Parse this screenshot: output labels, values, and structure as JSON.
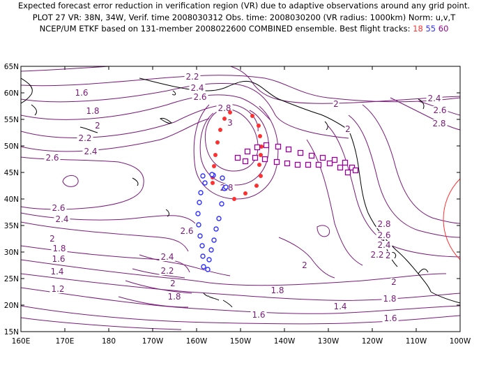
{
  "header": {
    "line1": "Expected forecast error reduction in verification region (VR) due to adaptive observations around any grid point.",
    "line2": "PLOT 27 VR: 38N, 34W, Verif. time 2008030312 Obs. time: 2008030200 (VR radius: 1000km) Norm: u,v,T",
    "line3_prefix": "NCEP/UM ETKF based on 131-member 2008022600 COMBINED ensemble.  Best flight tracks: ",
    "track_ids": [
      "18",
      "55",
      "60"
    ],
    "track_colors": [
      "#ff3030",
      "#3030ff",
      "#990099"
    ]
  },
  "map": {
    "lat_labels": [
      "65N",
      "60N",
      "55N",
      "50N",
      "45N",
      "40N",
      "35N",
      "30N",
      "25N",
      "20N",
      "15N"
    ],
    "lon_labels": [
      "160E",
      "170E",
      "180",
      "170W",
      "160W",
      "150W",
      "140W",
      "130W",
      "120W",
      "110W",
      "100W"
    ],
    "contour_color": "#7a1a7a",
    "coast_color": "#000000",
    "vr_circle_color": "#ff3030",
    "contour_labels": [
      {
        "text": "2.2"
      },
      {
        "text": "2.4"
      },
      {
        "text": "2.6"
      },
      {
        "text": "2.8"
      },
      {
        "text": "3"
      },
      {
        "text": "2"
      },
      {
        "text": "1.6"
      },
      {
        "text": "1.8"
      },
      {
        "text": "2"
      },
      {
        "text": "2.2"
      },
      {
        "text": "2.4"
      },
      {
        "text": "2.6"
      },
      {
        "text": "2.6"
      },
      {
        "text": "2.4"
      },
      {
        "text": "2.6"
      },
      {
        "text": "2.8"
      },
      {
        "text": "2"
      },
      {
        "text": "1.8"
      },
      {
        "text": "1.6"
      },
      {
        "text": "1.4"
      },
      {
        "text": "1.2"
      },
      {
        "text": "2.4"
      },
      {
        "text": "2.2"
      },
      {
        "text": "2"
      },
      {
        "text": "1.8"
      },
      {
        "text": "2.8"
      },
      {
        "text": "2.6"
      },
      {
        "text": "2.4"
      },
      {
        "text": "2.2"
      },
      {
        "text": "2"
      },
      {
        "text": "1.8"
      },
      {
        "text": "1.6"
      },
      {
        "text": "2"
      },
      {
        "text": "1.8"
      },
      {
        "text": "1.6"
      },
      {
        "text": "1.4"
      },
      {
        "text": "2.4"
      },
      {
        "text": "2.6"
      },
      {
        "text": "2.8"
      },
      {
        "text": "2.2"
      },
      {
        "text": "2"
      }
    ]
  }
}
